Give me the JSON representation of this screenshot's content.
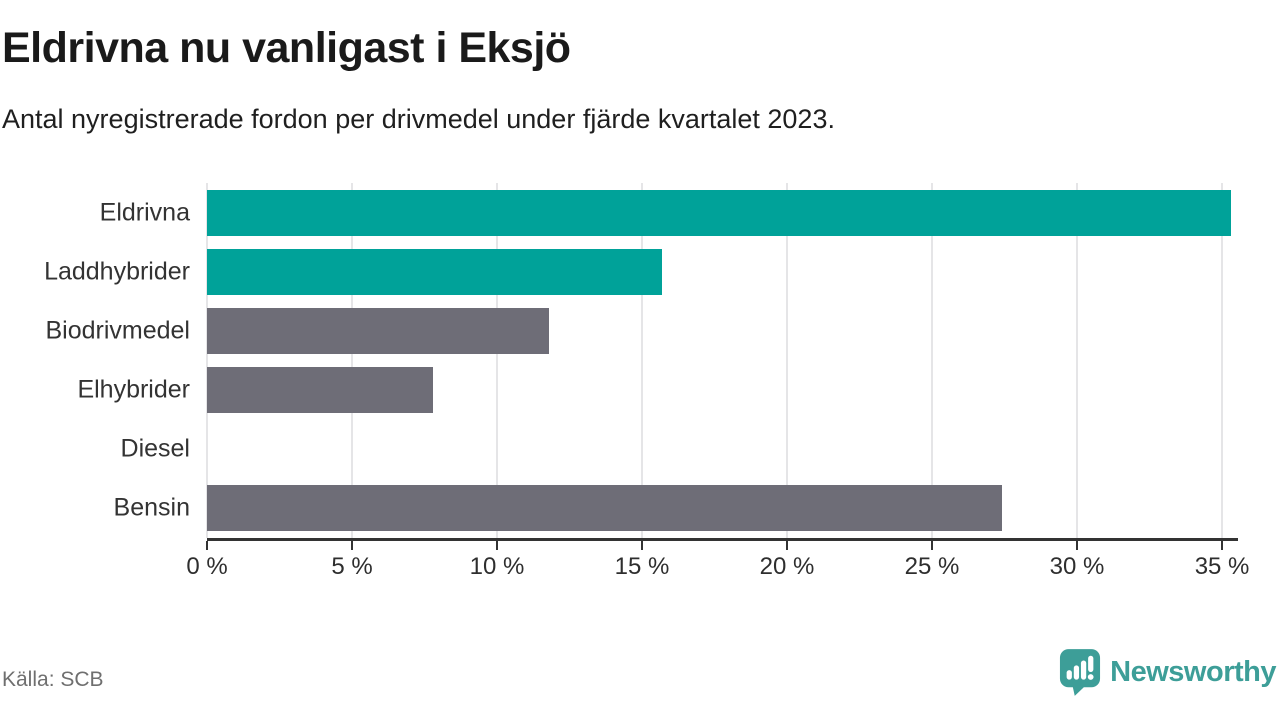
{
  "header": {
    "title": "Eldrivna nu vanligast i Eksjö",
    "subtitle": "Antal nyregistrerade fordon per drivmedel under fjärde kvartalet 2023."
  },
  "chart_data": {
    "type": "bar",
    "orientation": "horizontal",
    "title": "Eldrivna nu vanligast i Eksjö",
    "subtitle": "Antal nyregistrerade fordon per drivmedel under fjärde kvartalet 2023.",
    "categories": [
      "Eldrivna",
      "Laddhybrider",
      "Biodrivmedel",
      "Elhybrider",
      "Diesel",
      "Bensin"
    ],
    "values": [
      35.3,
      15.7,
      11.8,
      7.8,
      0,
      27.4
    ],
    "unit": "%",
    "bar_colors": [
      "#00a299",
      "#00a299",
      "#6e6d77",
      "#6e6d77",
      "#6e6d77",
      "#6e6d77"
    ],
    "xlim": [
      0,
      35.55
    ],
    "x_ticks": [
      0,
      5,
      10,
      15,
      20,
      25,
      30,
      35
    ],
    "x_tick_labels": [
      "0 %",
      "5 %",
      "10 %",
      "15 %",
      "20 %",
      "25 %",
      "30 %",
      "35 %"
    ],
    "grid": "vertical",
    "legend": "none",
    "xlabel": "",
    "ylabel": ""
  },
  "footer": {
    "source": "Källa: SCB",
    "brand": "Newsworthy"
  },
  "colors": {
    "accent_teal": "#00a299",
    "neutral_gray": "#6e6d77",
    "logo_teal": "#3d9e98",
    "gridline": "#e5e5e7",
    "axis": "#333333"
  }
}
